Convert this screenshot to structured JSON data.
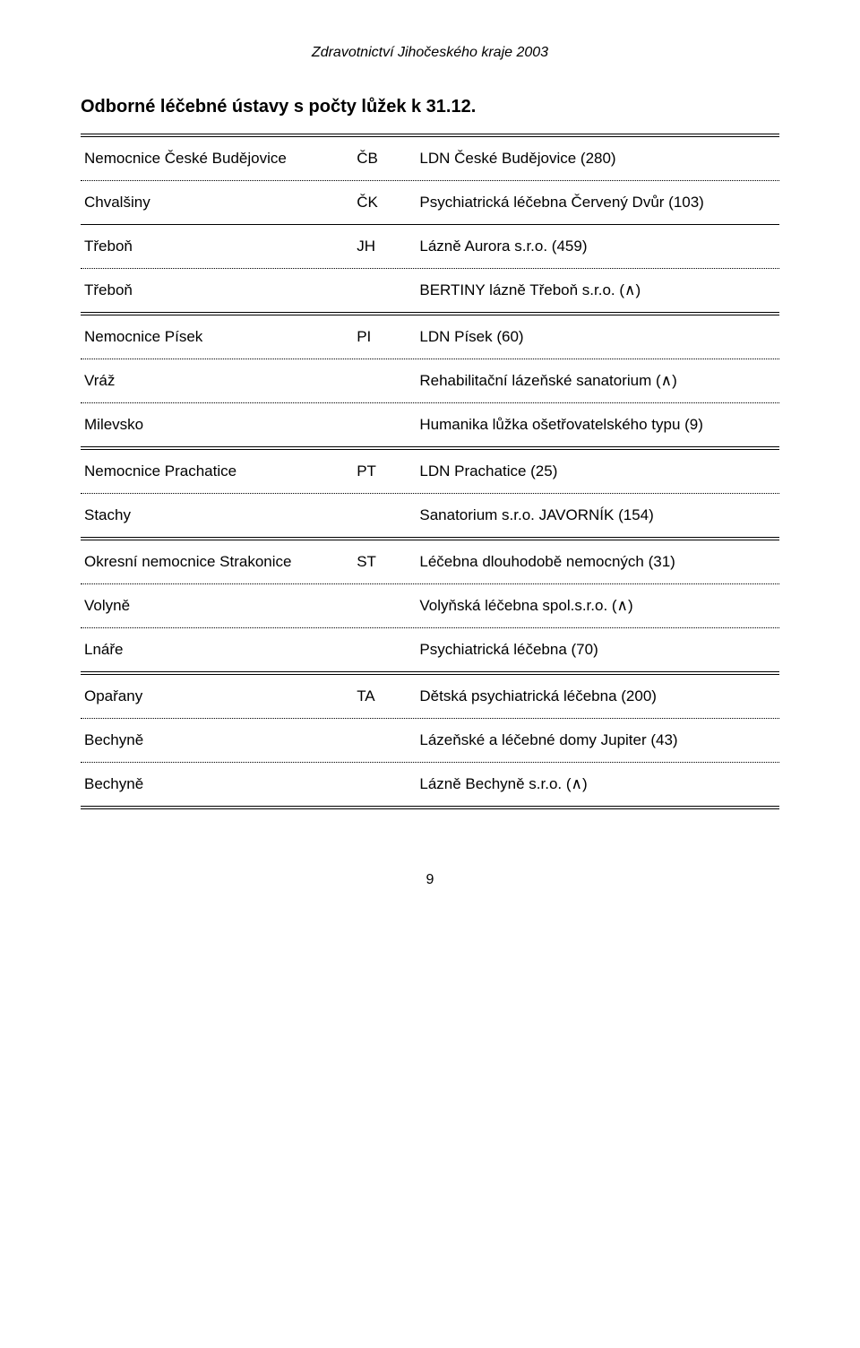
{
  "header_note": "Zdravotnictví Jihočeského kraje 2003",
  "title": "Odborné léčebné ústavy s počty lůžek k 31.12.",
  "page_number": "9",
  "separators": {
    "double_color": "#000000",
    "single_color": "#000000",
    "dotted_color": "#000000"
  },
  "groups": [
    {
      "top_sep": "double",
      "bottom_sep": "double",
      "rows": [
        {
          "left": "Nemocnice České Budějovice",
          "mid": "ČB",
          "right": "LDN České Budějovice (280)",
          "sep_after": "dotted"
        },
        {
          "left": "Chvalšiny",
          "mid": "ČK",
          "right": "Psychiatrická léčebna Červený Dvůr (103)",
          "sep_after": "single"
        },
        {
          "left": "Třeboň",
          "mid": "JH",
          "right": "Lázně Aurora s.r.o. (459)",
          "sep_after": "dotted"
        },
        {
          "left": "Třeboň",
          "mid": "",
          "right": "BERTINY lázně Třeboň s.r.o. (∧)",
          "sep_after": null
        }
      ]
    },
    {
      "top_sep": null,
      "bottom_sep": "double",
      "rows": [
        {
          "left": "Nemocnice Písek",
          "mid": "PI",
          "right": "LDN Písek (60)",
          "sep_after": "dotted"
        },
        {
          "left": "Vráž",
          "mid": "",
          "right": "Rehabilitační lázeňské sanatorium (∧)",
          "sep_after": "dotted"
        },
        {
          "left": "Milevsko",
          "mid": "",
          "right": "Humanika lůžka ošetřovatelského typu (9)",
          "sep_after": null
        }
      ]
    },
    {
      "top_sep": null,
      "bottom_sep": "double",
      "rows": [
        {
          "left": "Nemocnice Prachatice",
          "mid": "PT",
          "right": "LDN Prachatice (25)",
          "sep_after": "dotted"
        },
        {
          "left": "Stachy",
          "mid": "",
          "right": "Sanatorium s.r.o. JAVORNÍK (154)",
          "sep_after": null
        }
      ]
    },
    {
      "top_sep": null,
      "bottom_sep": "double",
      "rows": [
        {
          "left": "Okresní nemocnice Strakonice",
          "mid": "ST",
          "right": "Léčebna dlouhodobě nemocných (31)",
          "sep_after": "dotted"
        },
        {
          "left": "Volyně",
          "mid": "",
          "right": "Volyňská léčebna spol.s.r.o. (∧)",
          "sep_after": "dotted"
        },
        {
          "left": "Lnáře",
          "mid": "",
          "right": "Psychiatrická léčebna (70)",
          "sep_after": null
        }
      ]
    },
    {
      "top_sep": null,
      "bottom_sep": "double",
      "rows": [
        {
          "left": "Opařany",
          "mid": "TA",
          "right": "Dětská psychiatrická léčebna (200)",
          "sep_after": "dotted"
        },
        {
          "left": "Bechyně",
          "mid": "",
          "right": "Lázeňské a léčebné domy Jupiter (43)",
          "sep_after": "dotted"
        },
        {
          "left": "Bechyně",
          "mid": "",
          "right": "Lázně Bechyně s.r.o. (∧)",
          "sep_after": null
        }
      ]
    }
  ]
}
